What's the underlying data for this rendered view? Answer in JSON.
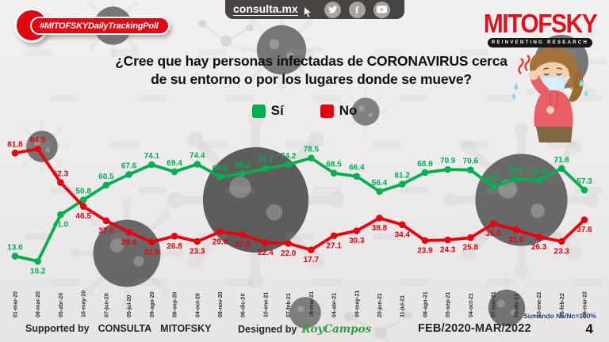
{
  "header": {
    "badge_label": "#MITOFSKYDailyTrackingPoll",
    "site_label": "consulta.mx",
    "social_icons": [
      "twitter",
      "facebook",
      "youtube"
    ],
    "brand": "MITOFSKY",
    "brand_tagline": "REINVENTING RESEARCH"
  },
  "title_line1": "¿Cree que hay personas infectadas de CORONAVIRUS cerca",
  "title_line2": "de su entorno o por los lugares donde se mueve?",
  "legend": {
    "yes_label": "Sí",
    "no_label": "No",
    "yes_color": "#00b050",
    "no_color": "#e8000f"
  },
  "chart_data": {
    "type": "line",
    "categories": [
      "01-mar-20",
      "08-mar-20",
      "05-abr-20",
      "10-may-20",
      "07-jun-20",
      "05-jul-20",
      "09-ago-20",
      "06-sep-20",
      "04-oct-20",
      "08-nov-20",
      "06-dic-20",
      "10-ene-21",
      "07-feb-21",
      "08-mar-21",
      "04-abr-21",
      "09-may-21",
      "20-jun-21",
      "11-jul-21",
      "08-ago-21",
      "05-sep-21",
      "04-oct-21",
      "07-nov-21",
      "05-dic-21",
      "10-ene-22",
      "06-feb-22",
      "06-mar-22"
    ],
    "series": [
      {
        "name": "Sí",
        "color": "#00b050",
        "values": [
          13.6,
          10.2,
          41.0,
          50.8,
          60.5,
          67.6,
          74.1,
          69.4,
          74.4,
          66.0,
          68.2,
          71.7,
          74.2,
          78.5,
          68.5,
          66.4,
          56.4,
          61.2,
          68.9,
          70.9,
          70.6,
          59.4,
          64.6,
          63.9,
          71.6,
          57.3
        ]
      },
      {
        "name": "No",
        "color": "#e8000f",
        "values": [
          81.8,
          84.5,
          62.3,
          46.5,
          37.0,
          29.4,
          22.9,
          26.8,
          23.3,
          29.6,
          27.8,
          22.4,
          22.0,
          17.7,
          27.1,
          30.3,
          38.8,
          34.4,
          23.9,
          24.3,
          25.8,
          35.0,
          31.0,
          26.3,
          23.3,
          37.6
        ]
      }
    ],
    "ylim": [
      0,
      100
    ],
    "grid": false,
    "legend_position": "top-center",
    "annotation": "Sumando Ns/Nc=100%"
  },
  "footer": {
    "supported_by_label": "Supported by",
    "supported_by_1": "CONSULTA",
    "supported_by_2": "MITOFSKY",
    "designed_by_label": "Designed by",
    "designer": "RoyCampos",
    "period": "FEB/2020-MAR/2022",
    "note": "Sumando Ns/Nc=100%",
    "page_number": "4"
  }
}
